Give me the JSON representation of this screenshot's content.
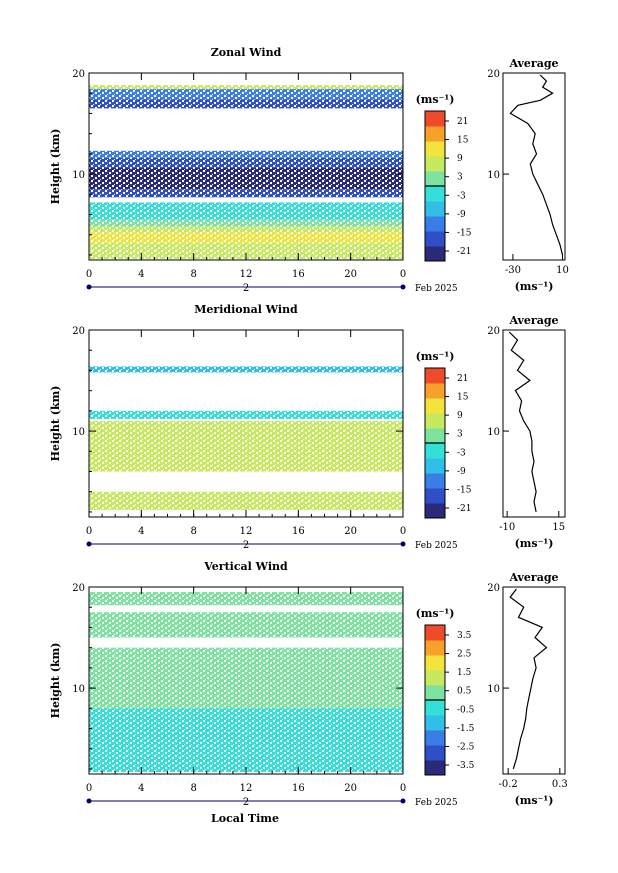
{
  "panels": [
    {
      "title": "Zonal Wind",
      "ylabel": "Height (km)",
      "unit": "(ms⁻¹)",
      "colorbar_ticks": [
        "21",
        "15",
        "9",
        "3",
        "-3",
        "-9",
        "-15",
        "-21"
      ],
      "average_title": "Average",
      "average_unit": "(ms⁻¹)",
      "average_xticks": [
        "-30",
        "10"
      ],
      "average_yticks": [
        "20",
        "10"
      ]
    },
    {
      "title": "Meridional Wind",
      "ylabel": "Height (km)",
      "unit": "(ms⁻¹)",
      "colorbar_ticks": [
        "21",
        "15",
        "9",
        "3",
        "-3",
        "-9",
        "-15",
        "-21"
      ],
      "average_title": "Average",
      "average_unit": "(ms⁻¹)",
      "average_xticks": [
        "-10",
        "15"
      ],
      "average_yticks": [
        "20",
        "10"
      ]
    },
    {
      "title": "Vertical Wind",
      "ylabel": "Height (km)",
      "unit": "(ms⁻¹)",
      "colorbar_ticks": [
        "3.5",
        "2.5",
        "1.5",
        "0.5",
        "-0.5",
        "-1.5",
        "-2.5",
        "-3.5"
      ],
      "average_title": "Average",
      "average_unit": "(ms⁻¹)",
      "average_xticks": [
        "-0.2",
        "0.3"
      ],
      "average_yticks": [
        "20",
        "10"
      ]
    }
  ],
  "shared": {
    "x_ticks": [
      "0",
      "4",
      "8",
      "12",
      "16",
      "20",
      "0"
    ],
    "y_ticks": [
      "20",
      "10"
    ],
    "day_label": "2",
    "date_label": "Feb 2025",
    "xlabel": "Local Time"
  },
  "colors": {
    "scale": [
      "#2a2a78",
      "#2f4fc8",
      "#3a7de6",
      "#31bfe8",
      "#33e0d8",
      "#7ce2a0",
      "#c6e95e",
      "#f2e43a",
      "#f7a12a",
      "#ef4b2a"
    ]
  },
  "chart_data": [
    {
      "type": "heatmap",
      "title": "Zonal Wind",
      "xlabel": "",
      "ylabel": "Height (km)",
      "xlim": [
        0,
        24
      ],
      "ylim": [
        1.5,
        20
      ],
      "zlim": [
        -24,
        24
      ],
      "x_ticks": [
        0,
        4,
        8,
        12,
        16,
        20,
        24
      ],
      "layers": [
        {
          "height_km": [
            18.4,
            18.8
          ],
          "value": 9
        },
        {
          "height_km": [
            17.4,
            18.4
          ],
          "value": -12
        },
        {
          "height_km": [
            16.5,
            17.4
          ],
          "value": -18
        },
        {
          "height_km": [
            11.6,
            12.3
          ],
          "value": -12
        },
        {
          "height_km": [
            10.6,
            11.6
          ],
          "value": -15
        },
        {
          "height_km": [
            8.5,
            10.6
          ],
          "value": -21
        },
        {
          "height_km": [
            7.7,
            8.5
          ],
          "value": -15
        },
        {
          "height_km": [
            5.5,
            7.2
          ],
          "value": -3
        },
        {
          "height_km": [
            4.8,
            5.5
          ],
          "value": 3
        },
        {
          "height_km": [
            4.2,
            4.8
          ],
          "value": 6
        },
        {
          "height_km": [
            3.2,
            4.2
          ],
          "value": 12
        },
        {
          "height_km": [
            2.4,
            3.2
          ],
          "value": 9
        },
        {
          "height_km": [
            1.6,
            2.4
          ],
          "value": 6
        }
      ],
      "average_profile": {
        "xlim": [
          -38,
          12
        ],
        "height": [
          2,
          3,
          4,
          5,
          6,
          7,
          8,
          9,
          10,
          11,
          12,
          13,
          14,
          15,
          16,
          16.8,
          17.3,
          18,
          18.6,
          19.2,
          19.8
        ],
        "value": [
          10,
          8,
          5,
          2,
          0,
          -3,
          -6,
          -10,
          -14,
          -16,
          -11,
          -14,
          -12,
          -18,
          -32,
          -26,
          -8,
          2,
          -6,
          -3,
          -8
        ]
      }
    },
    {
      "type": "heatmap",
      "title": "Meridional Wind",
      "xlabel": "",
      "ylabel": "Height (km)",
      "xlim": [
        0,
        24
      ],
      "ylim": [
        1.5,
        20
      ],
      "zlim": [
        -24,
        24
      ],
      "x_ticks": [
        0,
        4,
        8,
        12,
        16,
        20,
        24
      ],
      "layers": [
        {
          "height_km": [
            15.8,
            16.4
          ],
          "value": -6
        },
        {
          "height_km": [
            11.2,
            12.0
          ],
          "value": -3
        },
        {
          "height_km": [
            6.0,
            11.0
          ],
          "value": 6
        },
        {
          "height_km": [
            2.2,
            4.0
          ],
          "value": 6
        }
      ],
      "average_profile": {
        "xlim": [
          -12,
          18
        ],
        "height": [
          2,
          3,
          4,
          5,
          6,
          7,
          8,
          9,
          10,
          11,
          12,
          13,
          14,
          15,
          16,
          17,
          18,
          19,
          19.8
        ],
        "value": [
          4,
          3,
          4,
          3,
          2,
          3,
          2,
          2,
          1,
          -2,
          -4,
          -3,
          -6,
          1,
          -5,
          -2,
          -8,
          -5,
          -9
        ]
      }
    },
    {
      "type": "heatmap",
      "title": "Vertical Wind",
      "xlabel": "Local Time",
      "ylabel": "Height (km)",
      "xlim": [
        0,
        24
      ],
      "ylim": [
        1.5,
        20
      ],
      "zlim": [
        -4,
        4
      ],
      "x_ticks": [
        0,
        4,
        8,
        12,
        16,
        20,
        24
      ],
      "layers": [
        {
          "height_km": [
            18.2,
            19.5
          ],
          "value": 0.0
        },
        {
          "height_km": [
            15.0,
            17.5
          ],
          "value": 0.3
        },
        {
          "height_km": [
            13.0,
            14.0
          ],
          "value": 0.1
        },
        {
          "height_km": [
            8.0,
            13.0
          ],
          "value": 0.0
        },
        {
          "height_km": [
            1.7,
            8.0
          ],
          "value": -0.3
        }
      ],
      "average_profile": {
        "xlim": [
          -0.25,
          0.35
        ],
        "height": [
          2,
          3,
          4,
          5,
          6,
          7,
          8,
          9,
          10,
          11,
          12,
          13,
          14,
          15,
          16,
          17,
          18,
          19,
          19.8
        ],
        "value": [
          -0.15,
          -0.12,
          -0.1,
          -0.08,
          -0.05,
          -0.03,
          -0.02,
          0.0,
          0.02,
          0.04,
          0.07,
          0.05,
          0.17,
          0.06,
          0.13,
          -0.1,
          -0.05,
          -0.18,
          -0.12
        ]
      }
    }
  ]
}
